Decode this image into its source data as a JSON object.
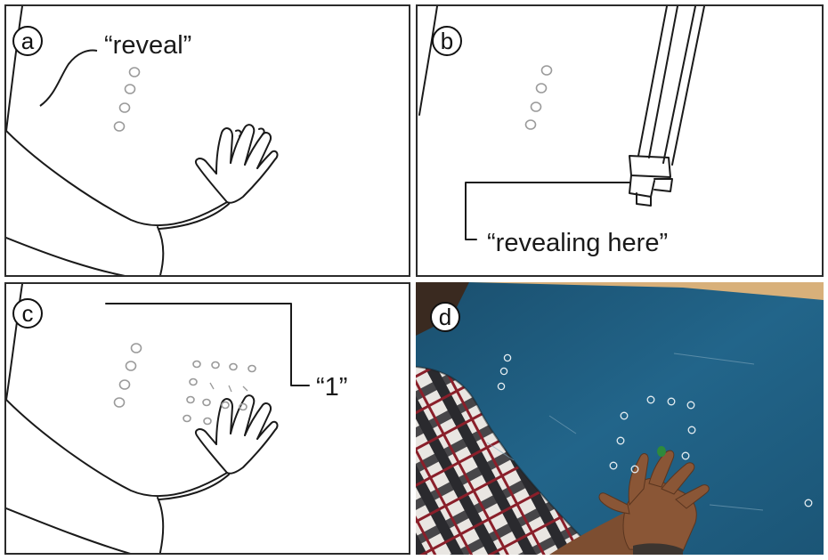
{
  "panels": [
    {
      "id": "a",
      "label": "a",
      "speech": "“reveal”"
    },
    {
      "id": "b",
      "label": "b",
      "speech": "“revealing here”"
    },
    {
      "id": "c",
      "label": "c",
      "speech": "“1”"
    },
    {
      "id": "d",
      "label": "d",
      "speech": ""
    }
  ],
  "colors": {
    "outline": "#2b2b2b",
    "dot": "#9a9a9a",
    "table_blue": "#1e5b7d",
    "table_edge": "#d8b07a",
    "skin": "#8a5636",
    "fingertip": "#2e8a3c"
  },
  "icons": [
    "arm-outline-icon",
    "hand-outline-icon",
    "camera-rig-icon",
    "photo-scene"
  ]
}
